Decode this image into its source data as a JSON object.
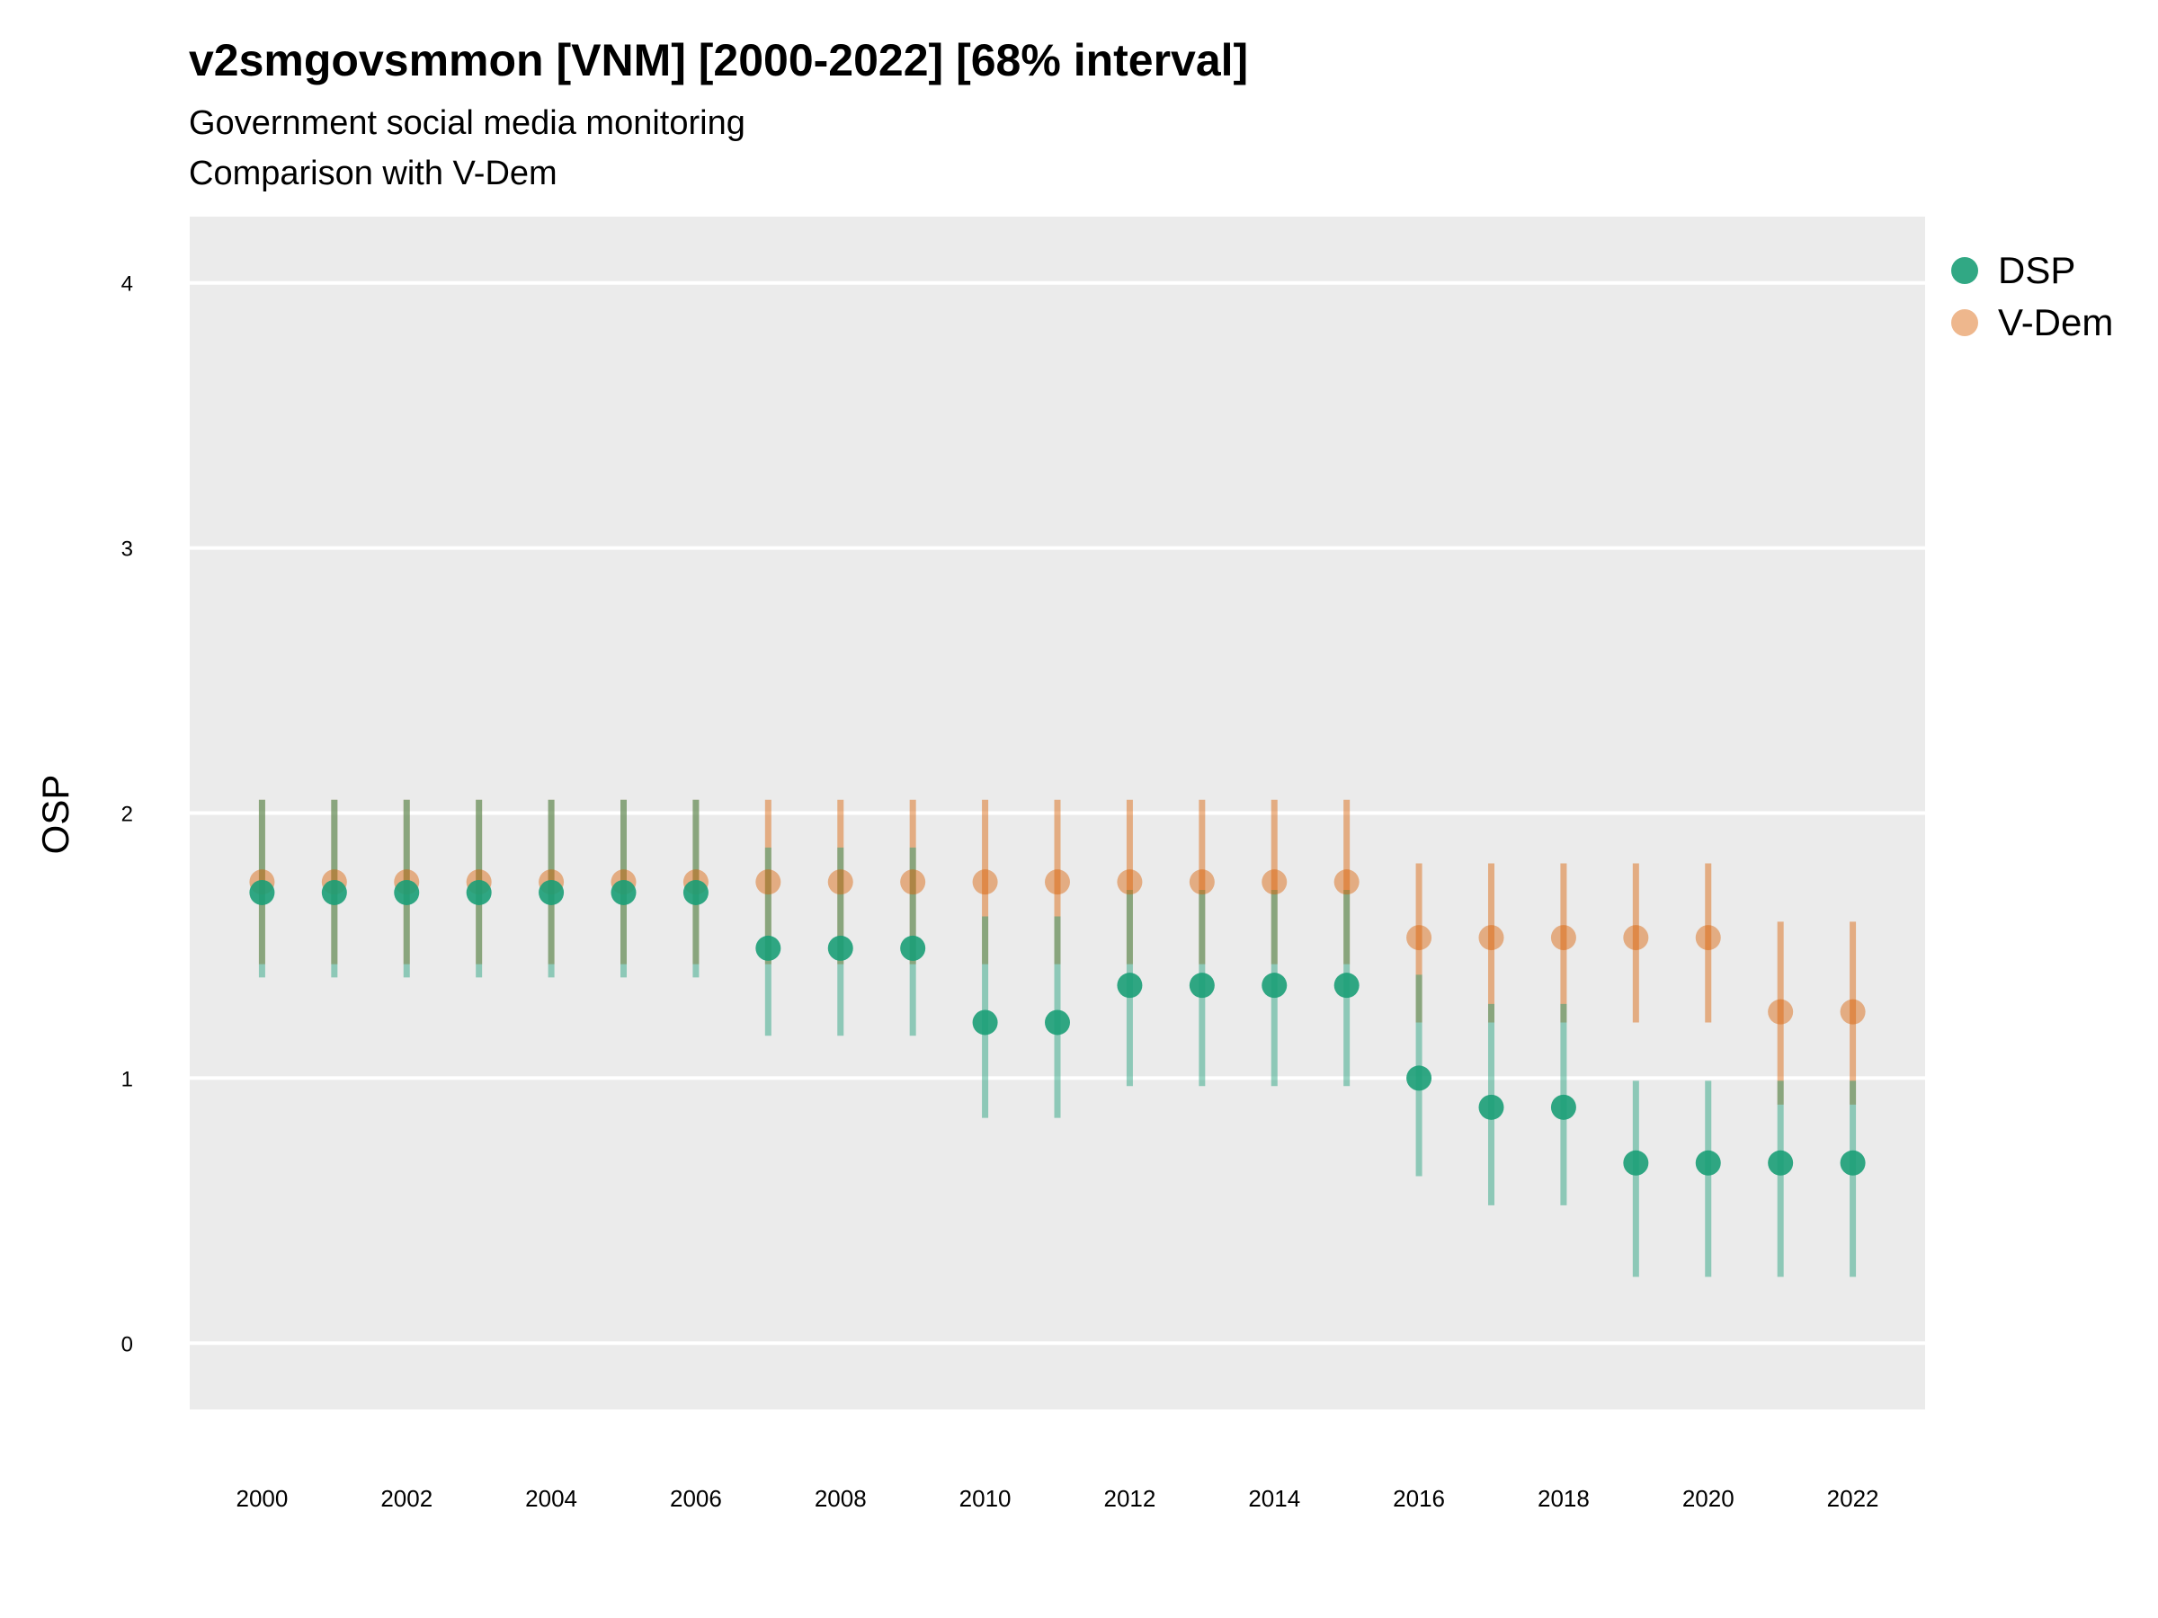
{
  "chart_data": {
    "type": "scatter",
    "title": "v2smgovsmmon [VNM] [2000-2022] [68% interval]",
    "subtitle": [
      "Government social media monitoring",
      "Comparison with V-Dem"
    ],
    "xlabel": "",
    "ylabel": "OSP",
    "ylim": [
      -0.25,
      4.25
    ],
    "yticks": [
      0,
      1,
      2,
      3,
      4
    ],
    "xticks": [
      2000,
      2002,
      2004,
      2006,
      2008,
      2010,
      2012,
      2014,
      2016,
      2018,
      2020,
      2022
    ],
    "grid": true,
    "legend_position": "right",
    "x": [
      2000,
      2001,
      2002,
      2003,
      2004,
      2005,
      2006,
      2007,
      2008,
      2009,
      2010,
      2011,
      2012,
      2013,
      2014,
      2015,
      2016,
      2017,
      2018,
      2019,
      2020,
      2021,
      2022
    ],
    "series": [
      {
        "name": "DSP",
        "color": "#1b9e77",
        "values": [
          1.7,
          1.7,
          1.7,
          1.7,
          1.7,
          1.7,
          1.7,
          1.49,
          1.49,
          1.49,
          1.21,
          1.21,
          1.35,
          1.35,
          1.35,
          1.35,
          1.0,
          0.89,
          0.89,
          0.68,
          0.68,
          0.68,
          0.68
        ],
        "lower": [
          1.38,
          1.38,
          1.38,
          1.38,
          1.38,
          1.38,
          1.38,
          1.16,
          1.16,
          1.16,
          0.85,
          0.85,
          0.97,
          0.97,
          0.97,
          0.97,
          0.63,
          0.52,
          0.52,
          0.25,
          0.25,
          0.25,
          0.25
        ],
        "upper": [
          2.05,
          2.05,
          2.05,
          2.05,
          2.05,
          2.05,
          2.05,
          1.87,
          1.87,
          1.87,
          1.61,
          1.61,
          1.71,
          1.71,
          1.71,
          1.71,
          1.39,
          1.28,
          1.28,
          0.99,
          0.99,
          0.99,
          0.99
        ]
      },
      {
        "name": "V-Dem",
        "color": "#d95f02",
        "values": [
          1.74,
          1.74,
          1.74,
          1.74,
          1.74,
          1.74,
          1.74,
          1.74,
          1.74,
          1.74,
          1.74,
          1.74,
          1.74,
          1.74,
          1.74,
          1.74,
          1.53,
          1.53,
          1.53,
          1.53,
          1.53,
          1.25,
          1.25
        ],
        "lower": [
          1.43,
          1.43,
          1.43,
          1.43,
          1.43,
          1.43,
          1.43,
          1.43,
          1.43,
          1.43,
          1.43,
          1.43,
          1.43,
          1.43,
          1.43,
          1.43,
          1.21,
          1.21,
          1.21,
          1.21,
          1.21,
          0.9,
          0.9
        ],
        "upper": [
          2.05,
          2.05,
          2.05,
          2.05,
          2.05,
          2.05,
          2.05,
          2.05,
          2.05,
          2.05,
          2.05,
          2.05,
          2.05,
          2.05,
          2.05,
          2.05,
          1.81,
          1.81,
          1.81,
          1.81,
          1.81,
          1.59,
          1.59
        ]
      }
    ]
  }
}
